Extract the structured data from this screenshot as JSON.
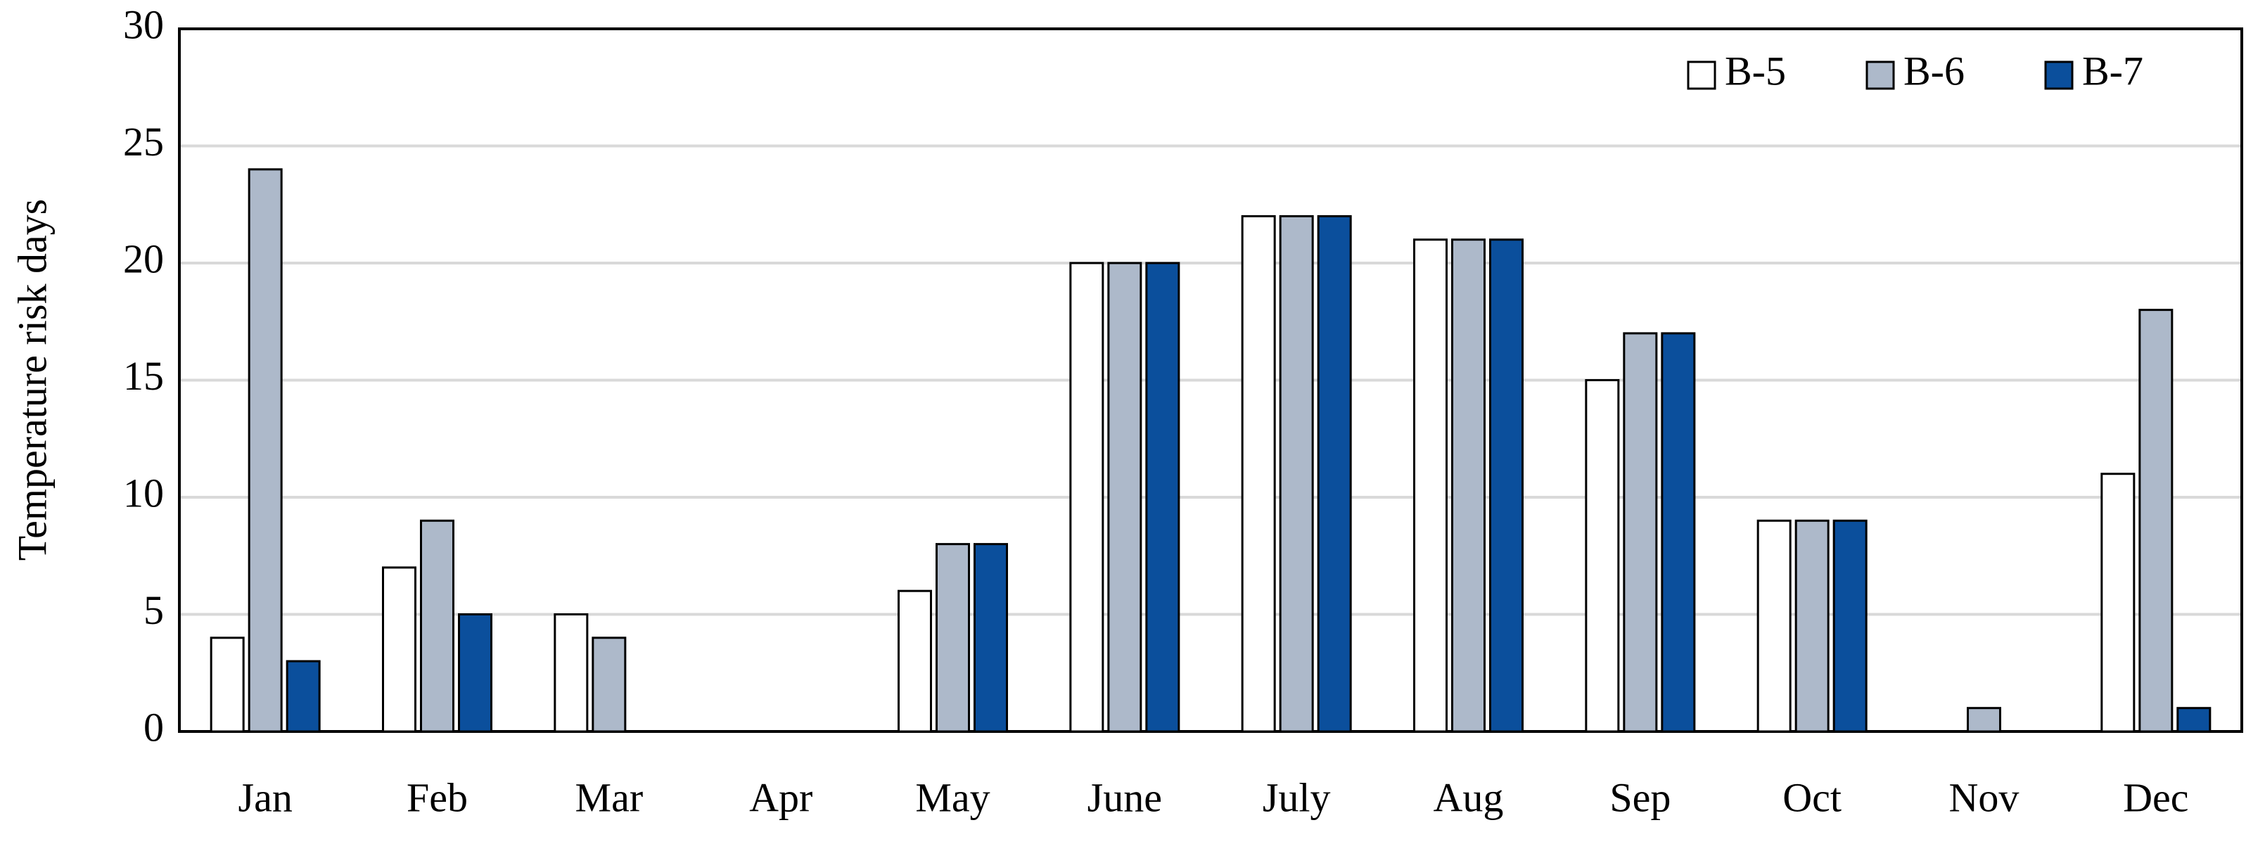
{
  "chart_data": {
    "type": "bar",
    "y_label": "Temperature risk days",
    "categories": [
      "Jan",
      "Feb",
      "Mar",
      "Apr",
      "May",
      "June",
      "July",
      "Aug",
      "Sep",
      "Oct",
      "Nov",
      "Dec"
    ],
    "series": [
      {
        "name": "B-5",
        "color": "#ffffff",
        "values": [
          4,
          7,
          5,
          0,
          6,
          20,
          22,
          21,
          15,
          9,
          0,
          11
        ]
      },
      {
        "name": "B-6",
        "color": "#adb9ca",
        "values": [
          24,
          9,
          4,
          0,
          8,
          20,
          22,
          21,
          17,
          9,
          1,
          18
        ]
      },
      {
        "name": "B-7",
        "color": "#0b4f9c",
        "values": [
          3,
          5,
          0,
          0,
          8,
          20,
          22,
          21,
          17,
          9,
          0,
          1
        ]
      }
    ],
    "ylim": [
      0,
      30
    ],
    "yticks": [
      0,
      5,
      10,
      15,
      20,
      25,
      30
    ],
    "grid": true,
    "legend": "top-right"
  }
}
